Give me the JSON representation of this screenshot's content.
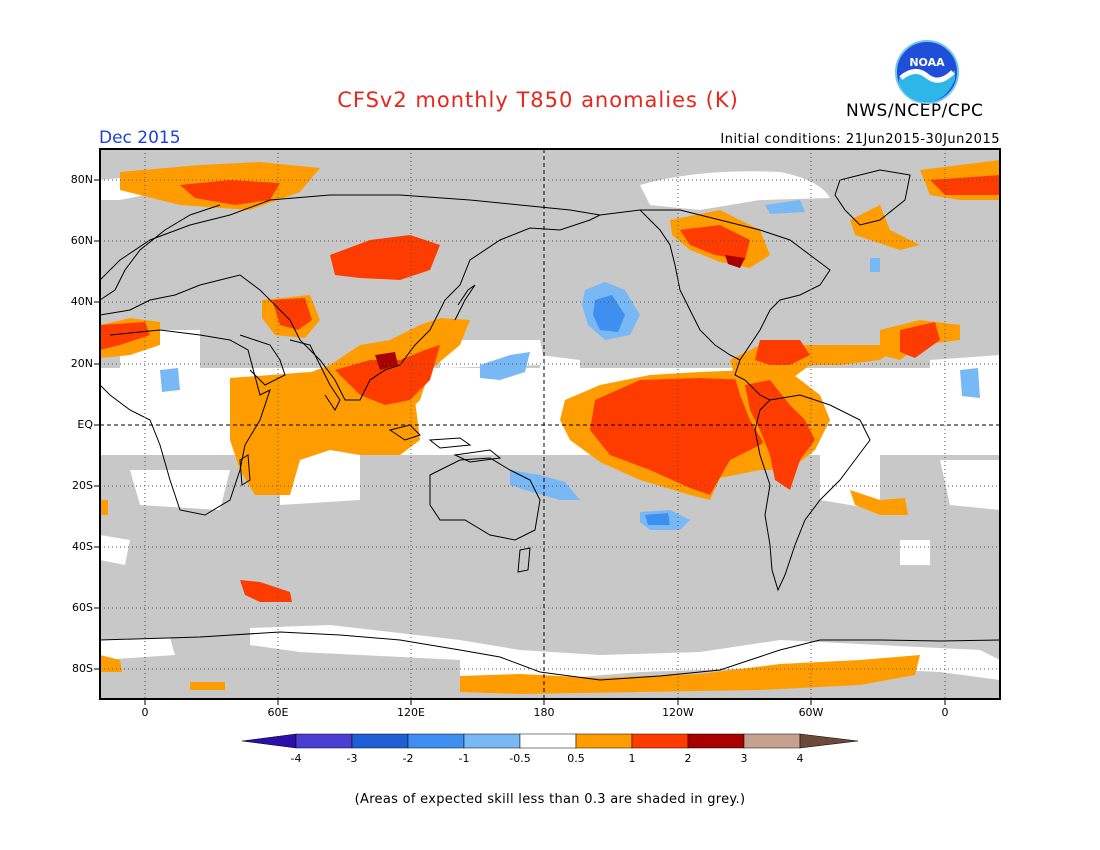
{
  "title": "CFSv2 monthly T850 anomalies (K)",
  "month_label": "Dec 2015",
  "agency": "NWS/NCEP/CPC",
  "logo_text": "NOAA",
  "initial_conditions": "Initial conditions: 21Jun2015-30Jun2015",
  "footnote": "(Areas of expected skill less than 0.3 are shaded in grey.)",
  "lat_labels": [
    "80N",
    "60N",
    "40N",
    "20N",
    "EQ",
    "20S",
    "40S",
    "60S",
    "80S"
  ],
  "lon_labels": [
    "0",
    "60E",
    "120E",
    "180",
    "120W",
    "60W",
    "0"
  ],
  "colorbar": {
    "labels": [
      "-4",
      "-3",
      "-2",
      "-1",
      "-0.5",
      "0.5",
      "1",
      "2",
      "3",
      "4"
    ],
    "colors": [
      "#2a10a8",
      "#4a3fd0",
      "#1f5fd6",
      "#3e8ff0",
      "#78b8f5",
      "#ffffff",
      "#ff9d00",
      "#ff3c00",
      "#a80000",
      "#c8a090",
      "#6b4a3a"
    ]
  },
  "colors": {
    "grey_mask": "#c8c8c8",
    "title": "#e8261c",
    "month": "#1e3fe0"
  }
}
